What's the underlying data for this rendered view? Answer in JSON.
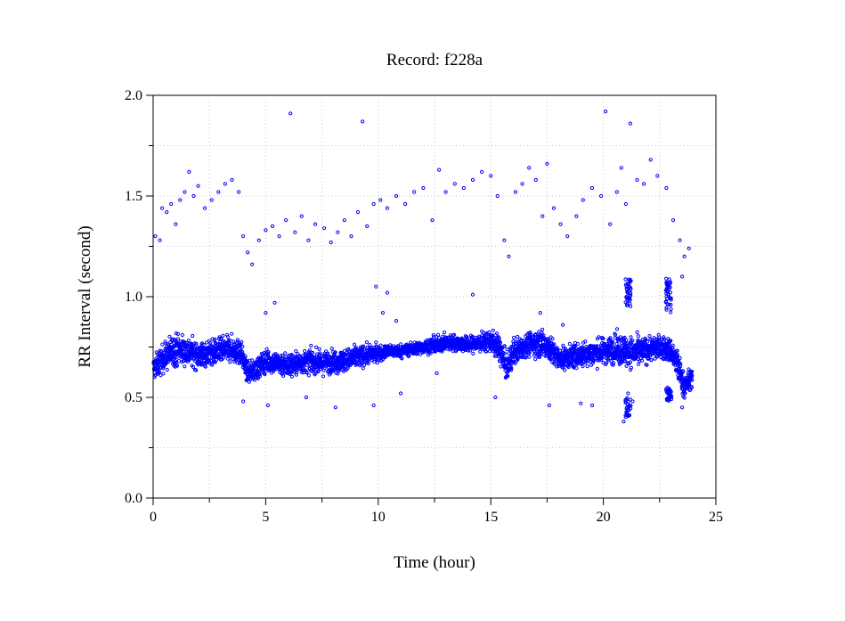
{
  "chart_data": {
    "type": "scatter",
    "title": "Record:  f228a",
    "xlabel": "Time (hour)",
    "ylabel": "RR Interval (second)",
    "xlim": [
      0,
      25
    ],
    "ylim": [
      0,
      2.0
    ],
    "xticks": [
      "0",
      "5",
      "10",
      "15",
      "20",
      "25"
    ],
    "yticks": [
      "0.0",
      "0.5",
      "1.0",
      "1.5",
      "2.0"
    ],
    "grid": true,
    "marker_color": "#0000ff",
    "series": [
      {
        "baseline_band": [
          [
            0.0,
            0.64,
            0.07
          ],
          [
            0.5,
            0.7,
            0.09
          ],
          [
            1.0,
            0.74,
            0.1
          ],
          [
            1.5,
            0.73,
            0.09
          ],
          [
            2.0,
            0.71,
            0.08
          ],
          [
            2.5,
            0.72,
            0.08
          ],
          [
            3.0,
            0.73,
            0.08
          ],
          [
            3.5,
            0.74,
            0.08
          ],
          [
            3.9,
            0.72,
            0.08
          ],
          [
            4.2,
            0.62,
            0.06
          ],
          [
            4.6,
            0.64,
            0.07
          ],
          [
            5.0,
            0.68,
            0.07
          ],
          [
            5.5,
            0.67,
            0.07
          ],
          [
            6.0,
            0.66,
            0.08
          ],
          [
            6.5,
            0.67,
            0.07
          ],
          [
            7.0,
            0.68,
            0.07
          ],
          [
            7.5,
            0.67,
            0.07
          ],
          [
            8.0,
            0.68,
            0.07
          ],
          [
            8.5,
            0.68,
            0.07
          ],
          [
            9.0,
            0.7,
            0.07
          ],
          [
            9.5,
            0.71,
            0.06
          ],
          [
            10.0,
            0.72,
            0.05
          ],
          [
            10.5,
            0.73,
            0.04
          ],
          [
            11.0,
            0.73,
            0.04
          ],
          [
            11.5,
            0.74,
            0.04
          ],
          [
            12.0,
            0.75,
            0.04
          ],
          [
            12.5,
            0.76,
            0.05
          ],
          [
            13.0,
            0.77,
            0.05
          ],
          [
            13.5,
            0.77,
            0.05
          ],
          [
            14.0,
            0.76,
            0.05
          ],
          [
            14.5,
            0.77,
            0.06
          ],
          [
            15.0,
            0.78,
            0.06
          ],
          [
            15.4,
            0.74,
            0.09
          ],
          [
            15.7,
            0.64,
            0.08
          ],
          [
            16.0,
            0.72,
            0.09
          ],
          [
            16.5,
            0.76,
            0.07
          ],
          [
            17.0,
            0.77,
            0.08
          ],
          [
            17.5,
            0.76,
            0.09
          ],
          [
            18.0,
            0.69,
            0.07
          ],
          [
            18.5,
            0.7,
            0.07
          ],
          [
            19.0,
            0.71,
            0.08
          ],
          [
            19.5,
            0.72,
            0.08
          ],
          [
            20.0,
            0.73,
            0.08
          ],
          [
            20.5,
            0.74,
            0.09
          ],
          [
            21.0,
            0.73,
            0.1
          ],
          [
            21.5,
            0.72,
            0.09
          ],
          [
            22.0,
            0.74,
            0.08
          ],
          [
            22.5,
            0.75,
            0.07
          ],
          [
            23.0,
            0.73,
            0.08
          ],
          [
            23.3,
            0.66,
            0.1
          ],
          [
            23.6,
            0.55,
            0.08
          ],
          [
            23.9,
            0.6,
            0.06
          ]
        ],
        "outlier_points": [
          [
            0.1,
            1.3
          ],
          [
            0.3,
            1.28
          ],
          [
            0.4,
            1.44
          ],
          [
            0.6,
            1.42
          ],
          [
            0.8,
            1.46
          ],
          [
            1.0,
            1.36
          ],
          [
            1.2,
            1.48
          ],
          [
            1.4,
            1.52
          ],
          [
            1.6,
            1.62
          ],
          [
            1.8,
            1.5
          ],
          [
            2.0,
            1.55
          ],
          [
            2.3,
            1.44
          ],
          [
            2.6,
            1.48
          ],
          [
            2.9,
            1.52
          ],
          [
            3.2,
            1.56
          ],
          [
            3.5,
            1.58
          ],
          [
            3.8,
            1.52
          ],
          [
            4.0,
            1.3
          ],
          [
            4.2,
            1.22
          ],
          [
            4.4,
            1.16
          ],
          [
            4.7,
            1.28
          ],
          [
            5.0,
            1.33
          ],
          [
            5.3,
            1.35
          ],
          [
            5.6,
            1.3
          ],
          [
            5.9,
            1.38
          ],
          [
            6.1,
            1.91
          ],
          [
            6.3,
            1.32
          ],
          [
            6.6,
            1.4
          ],
          [
            6.9,
            1.28
          ],
          [
            7.2,
            1.36
          ],
          [
            7.6,
            1.34
          ],
          [
            7.9,
            1.27
          ],
          [
            8.2,
            1.32
          ],
          [
            8.5,
            1.38
          ],
          [
            8.8,
            1.3
          ],
          [
            9.1,
            1.42
          ],
          [
            9.3,
            1.87
          ],
          [
            9.5,
            1.35
          ],
          [
            9.8,
            1.46
          ],
          [
            10.1,
            1.48
          ],
          [
            10.4,
            1.44
          ],
          [
            10.8,
            1.5
          ],
          [
            11.2,
            1.46
          ],
          [
            11.6,
            1.52
          ],
          [
            12.0,
            1.54
          ],
          [
            12.4,
            1.38
          ],
          [
            12.7,
            1.63
          ],
          [
            13.0,
            1.52
          ],
          [
            13.4,
            1.56
          ],
          [
            13.8,
            1.54
          ],
          [
            14.2,
            1.58
          ],
          [
            14.6,
            1.62
          ],
          [
            15.0,
            1.6
          ],
          [
            15.3,
            1.5
          ],
          [
            15.6,
            1.28
          ],
          [
            15.8,
            1.2
          ],
          [
            16.1,
            1.52
          ],
          [
            16.4,
            1.56
          ],
          [
            16.7,
            1.64
          ],
          [
            17.0,
            1.58
          ],
          [
            17.3,
            1.4
          ],
          [
            17.5,
            1.66
          ],
          [
            17.8,
            1.44
          ],
          [
            18.1,
            1.36
          ],
          [
            18.4,
            1.3
          ],
          [
            18.8,
            1.4
          ],
          [
            19.1,
            1.48
          ],
          [
            19.5,
            1.54
          ],
          [
            19.9,
            1.5
          ],
          [
            20.1,
            1.92
          ],
          [
            20.3,
            1.36
          ],
          [
            20.6,
            1.52
          ],
          [
            20.8,
            1.64
          ],
          [
            21.2,
            1.86
          ],
          [
            21.0,
            1.46
          ],
          [
            21.5,
            1.58
          ],
          [
            21.8,
            1.56
          ],
          [
            22.1,
            1.68
          ],
          [
            22.4,
            1.6
          ],
          [
            22.8,
            1.54
          ],
          [
            23.1,
            1.38
          ],
          [
            23.4,
            1.28
          ],
          [
            23.6,
            1.2
          ],
          [
            23.8,
            1.24
          ],
          [
            5.0,
            0.92
          ],
          [
            5.4,
            0.97
          ],
          [
            8.1,
            0.45
          ],
          [
            9.9,
            1.05
          ],
          [
            10.2,
            0.92
          ],
          [
            10.4,
            1.02
          ],
          [
            10.8,
            0.88
          ],
          [
            14.2,
            1.01
          ],
          [
            17.2,
            0.92
          ],
          [
            18.2,
            0.86
          ],
          [
            19.0,
            0.47
          ],
          [
            21.0,
            1.06
          ],
          [
            21.1,
            0.52
          ],
          [
            21.3,
            0.48
          ],
          [
            20.9,
            0.38
          ],
          [
            22.9,
            1.05
          ],
          [
            23.0,
            0.96
          ],
          [
            23.5,
            1.1
          ],
          [
            4.0,
            0.48
          ],
          [
            5.1,
            0.46
          ],
          [
            6.8,
            0.5
          ],
          [
            9.8,
            0.46
          ],
          [
            11.0,
            0.52
          ],
          [
            12.6,
            0.62
          ],
          [
            15.2,
            0.5
          ],
          [
            17.6,
            0.46
          ],
          [
            19.5,
            0.46
          ],
          [
            23.5,
            0.45
          ]
        ],
        "spike_clusters": [
          [
            21.1,
            0.95,
            1.1,
            0.5,
            0.4
          ],
          [
            22.9,
            0.9,
            1.1,
            0.55,
            0.48
          ]
        ]
      }
    ]
  }
}
